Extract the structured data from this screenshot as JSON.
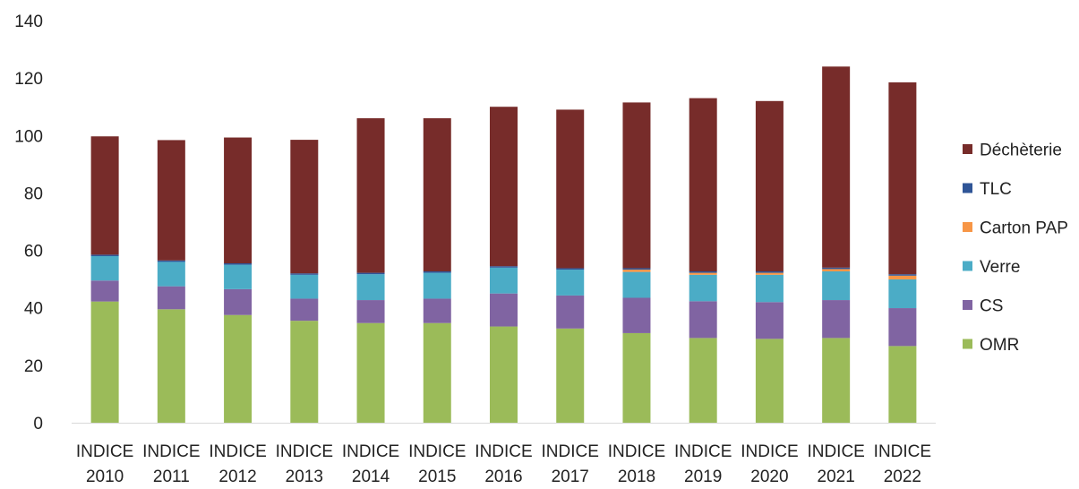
{
  "chart_data": {
    "type": "bar",
    "stacked": true,
    "title": "",
    "xlabel": "",
    "ylabel": "",
    "ylim": [
      0,
      140
    ],
    "yticks": [
      0,
      20,
      40,
      60,
      80,
      100,
      120,
      140
    ],
    "grid": false,
    "legend_position": "right",
    "categories": [
      [
        "INDICE",
        "2010"
      ],
      [
        "INDICE",
        "2011"
      ],
      [
        "INDICE",
        "2012"
      ],
      [
        "INDICE",
        "2013"
      ],
      [
        "INDICE",
        "2014"
      ],
      [
        "INDICE",
        "2015"
      ],
      [
        "INDICE",
        "2016"
      ],
      [
        "INDICE",
        "2017"
      ],
      [
        "INDICE",
        "2018"
      ],
      [
        "INDICE",
        "2019"
      ],
      [
        "INDICE",
        "2020"
      ],
      [
        "INDICE",
        "2021"
      ],
      [
        "INDICE",
        "2022"
      ]
    ],
    "series": [
      {
        "name": "OMR",
        "color": "#9bbb59",
        "values": [
          42.2,
          39.5,
          37.5,
          35.5,
          34.7,
          34.7,
          33.5,
          32.8,
          31.2,
          29.5,
          29.2,
          29.5,
          26.7
        ]
      },
      {
        "name": "CS",
        "color": "#8064a2",
        "values": [
          7.3,
          8.0,
          9.0,
          7.7,
          8.0,
          8.5,
          11.5,
          11.5,
          12.3,
          12.8,
          12.8,
          13.2,
          13.2
        ]
      },
      {
        "name": "Verre",
        "color": "#4bacc6",
        "values": [
          8.5,
          8.5,
          8.5,
          8.3,
          9.0,
          9.0,
          9.0,
          9.0,
          9.0,
          9.2,
          9.5,
          10.0,
          10.0
        ]
      },
      {
        "name": "Carton PAP",
        "color": "#f79646",
        "values": [
          0.0,
          0.0,
          0.0,
          0.0,
          0.0,
          0.0,
          0.0,
          0.0,
          0.8,
          0.7,
          0.7,
          0.8,
          1.3
        ]
      },
      {
        "name": "TLC",
        "color": "#2f5597",
        "values": [
          0.5,
          0.5,
          0.5,
          0.5,
          0.5,
          0.5,
          0.5,
          0.5,
          0.5,
          0.5,
          0.5,
          0.5,
          0.5
        ]
      },
      {
        "name": "Déchèterie",
        "color": "#772c2a",
        "values": [
          41.2,
          41.9,
          43.8,
          46.5,
          53.8,
          53.3,
          55.5,
          55.2,
          57.7,
          60.3,
          59.3,
          70.0,
          66.8
        ]
      }
    ]
  }
}
